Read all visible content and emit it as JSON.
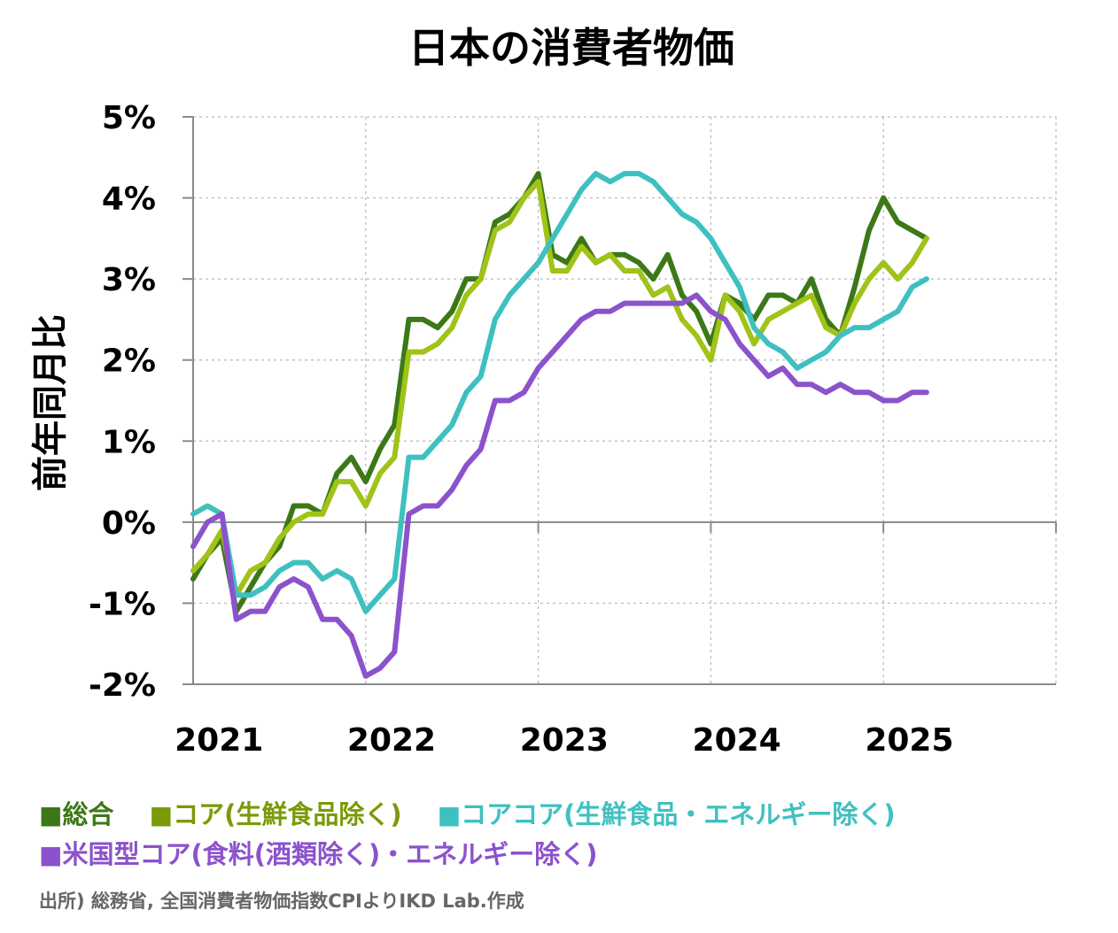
{
  "chart_data": {
    "type": "line",
    "title": "日本の消費者物価",
    "ylabel": "前年同月比",
    "xlabel": "",
    "ylim": [
      -2,
      5
    ],
    "yticks": [
      "5%",
      "4%",
      "3%",
      "2%",
      "1%",
      "0%",
      "-1%",
      "-2%"
    ],
    "xlim": [
      2021.0,
      2026.0
    ],
    "xticks": [
      "2021",
      "2022",
      "2023",
      "2024",
      "2025"
    ],
    "grid": true,
    "legend_position": "bottom",
    "x_start": "2021-01",
    "series": [
      {
        "name": "総合",
        "color": "#3d7818",
        "values": [
          -0.7,
          -0.4,
          -0.2,
          -1.1,
          -0.8,
          -0.5,
          -0.3,
          0.2,
          0.2,
          0.1,
          0.6,
          0.8,
          0.5,
          0.9,
          1.2,
          2.5,
          2.5,
          2.4,
          2.6,
          3.0,
          3.0,
          3.7,
          3.8,
          4.0,
          4.3,
          3.3,
          3.2,
          3.5,
          3.2,
          3.3,
          3.3,
          3.2,
          3.0,
          3.3,
          2.8,
          2.6,
          2.2,
          2.8,
          2.7,
          2.5,
          2.8,
          2.8,
          2.7,
          3.0,
          2.5,
          2.3,
          2.9,
          3.6,
          4.0,
          3.7,
          3.6,
          3.5
        ],
        "note": "x: 2021-01 to 2025-04 monthly"
      },
      {
        "name": "コア(生鮮食品除く)",
        "color": "#a0c319",
        "values": [
          -0.6,
          -0.4,
          -0.1,
          -0.9,
          -0.6,
          -0.5,
          -0.2,
          0.0,
          0.1,
          0.1,
          0.5,
          0.5,
          0.2,
          0.6,
          0.8,
          2.1,
          2.1,
          2.2,
          2.4,
          2.8,
          3.0,
          3.6,
          3.7,
          4.0,
          4.2,
          3.1,
          3.1,
          3.4,
          3.2,
          3.3,
          3.1,
          3.1,
          2.8,
          2.9,
          2.5,
          2.3,
          2.0,
          2.8,
          2.6,
          2.2,
          2.5,
          2.6,
          2.7,
          2.8,
          2.4,
          2.3,
          2.7,
          3.0,
          3.2,
          3.0,
          3.2,
          3.5
        ]
      },
      {
        "name": "コアコア(生鮮食品・エネルギー除く)",
        "color": "#3fc0c0",
        "values": [
          0.1,
          0.2,
          0.1,
          -0.9,
          -0.9,
          -0.8,
          -0.6,
          -0.5,
          -0.5,
          -0.7,
          -0.6,
          -0.7,
          -1.1,
          -0.9,
          -0.7,
          0.8,
          0.8,
          1.0,
          1.2,
          1.6,
          1.8,
          2.5,
          2.8,
          3.0,
          3.2,
          3.5,
          3.8,
          4.1,
          4.3,
          4.2,
          4.3,
          4.3,
          4.2,
          4.0,
          3.8,
          3.7,
          3.5,
          3.2,
          2.9,
          2.4,
          2.2,
          2.1,
          1.9,
          2.0,
          2.1,
          2.3,
          2.4,
          2.4,
          2.5,
          2.6,
          2.9,
          3.0
        ]
      },
      {
        "name": "米国型コア(食料(酒類除く)・エネルギー除く)",
        "color": "#8c52cc",
        "values": [
          -0.3,
          0.0,
          0.1,
          -1.2,
          -1.1,
          -1.1,
          -0.8,
          -0.7,
          -0.8,
          -1.2,
          -1.2,
          -1.4,
          -1.9,
          -1.8,
          -1.6,
          0.1,
          0.2,
          0.2,
          0.4,
          0.7,
          0.9,
          1.5,
          1.5,
          1.6,
          1.9,
          2.1,
          2.3,
          2.5,
          2.6,
          2.6,
          2.7,
          2.7,
          2.7,
          2.7,
          2.7,
          2.8,
          2.6,
          2.5,
          2.2,
          2.0,
          1.8,
          1.9,
          1.7,
          1.7,
          1.6,
          1.7,
          1.6,
          1.6,
          1.5,
          1.5,
          1.6,
          1.6
        ]
      }
    ]
  },
  "source": "出所) 総務省, 全国消費者物価指数CPIよりIKD Lab.作成"
}
